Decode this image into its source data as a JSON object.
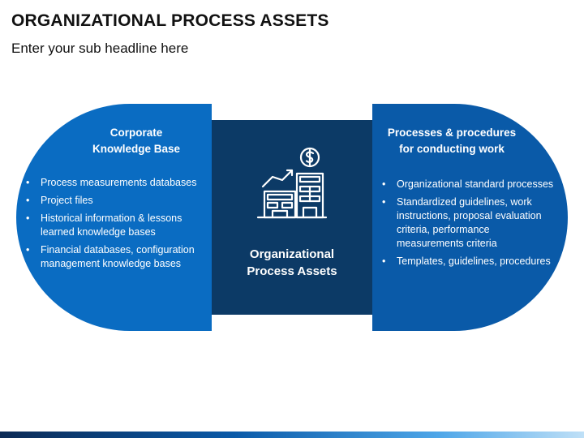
{
  "header": {
    "title": "ORGANIZATIONAL PROCESS ASSETS",
    "subtitle": "Enter your sub headline here"
  },
  "left": {
    "heading_line1": "Corporate",
    "heading_line2": "Knowledge Base",
    "bullets": [
      [
        "Process measurements databases"
      ],
      [
        "Project files"
      ],
      [
        "Historical information & lessons",
        "learned knowledge bases"
      ],
      [
        "Financial databases, configuration",
        "management knowledge bases"
      ]
    ]
  },
  "center": {
    "label_line1": "Organizational",
    "label_line2": "Process Assets",
    "icon": "buildings-growth-dollar-icon"
  },
  "right": {
    "heading_line1": "Processes & procedures",
    "heading_line2": "for conducting work",
    "bullets": [
      [
        "Organizational standard processes"
      ],
      [
        "Standardized guidelines, work",
        "instructions, proposal evaluation",
        "criteria, performance",
        "measurements criteria"
      ],
      [
        "Templates, guidelines, procedures"
      ]
    ]
  },
  "colors": {
    "left_panel": "#0a6cc2",
    "center_panel": "#0c3a66",
    "right_panel": "#0a5aa8"
  }
}
